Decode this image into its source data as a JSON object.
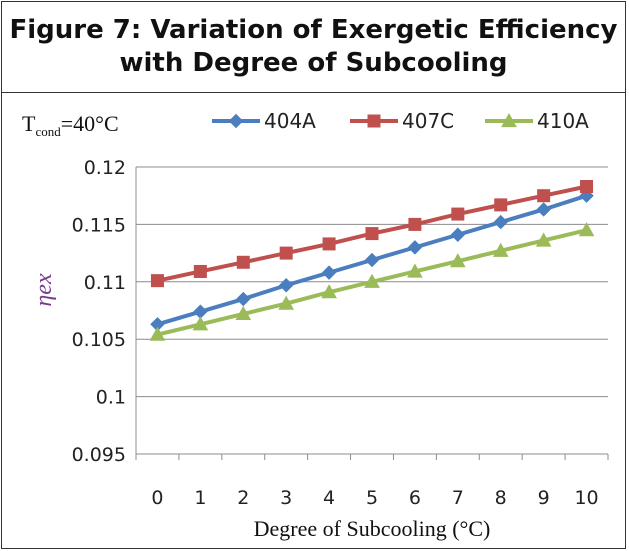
{
  "figure": {
    "title_line1": "Figure 7: Variation of Exergetic Efficiency",
    "title_line2": "with Degree of Subcooling"
  },
  "annotation": {
    "text": "T",
    "subscript": "cond",
    "suffix": "=40°C"
  },
  "chart_data": {
    "type": "line",
    "title": "",
    "xlabel": "Degree of Subcooling (°C)",
    "ylabel": "ηex",
    "x": [
      0,
      1,
      2,
      3,
      4,
      5,
      6,
      7,
      8,
      9,
      10
    ],
    "ylim": [
      0.095,
      0.12
    ],
    "yticks": [
      "0.095",
      "0.1",
      "0.105",
      "0.11",
      "0.115",
      "0.12"
    ],
    "grid": "horizontal",
    "legend_position": "top",
    "series": [
      {
        "name": "404A",
        "color": "#4a7ebf",
        "marker": "diamond",
        "values": [
          0.1063,
          0.1074,
          0.1085,
          0.1097,
          0.1108,
          0.1119,
          0.113,
          0.1141,
          0.1152,
          0.1163,
          0.1175
        ]
      },
      {
        "name": "407C",
        "color": "#c0504d",
        "marker": "square",
        "values": [
          0.1101,
          0.1109,
          0.1117,
          0.1125,
          0.1133,
          0.1142,
          0.115,
          0.1159,
          0.1167,
          0.1175,
          0.1183
        ]
      },
      {
        "name": "410A",
        "color": "#9bbb59",
        "marker": "triangle",
        "values": [
          0.1054,
          0.1063,
          0.1072,
          0.1081,
          0.1091,
          0.11,
          0.1109,
          0.1118,
          0.1127,
          0.1136,
          0.1145
        ]
      }
    ]
  }
}
